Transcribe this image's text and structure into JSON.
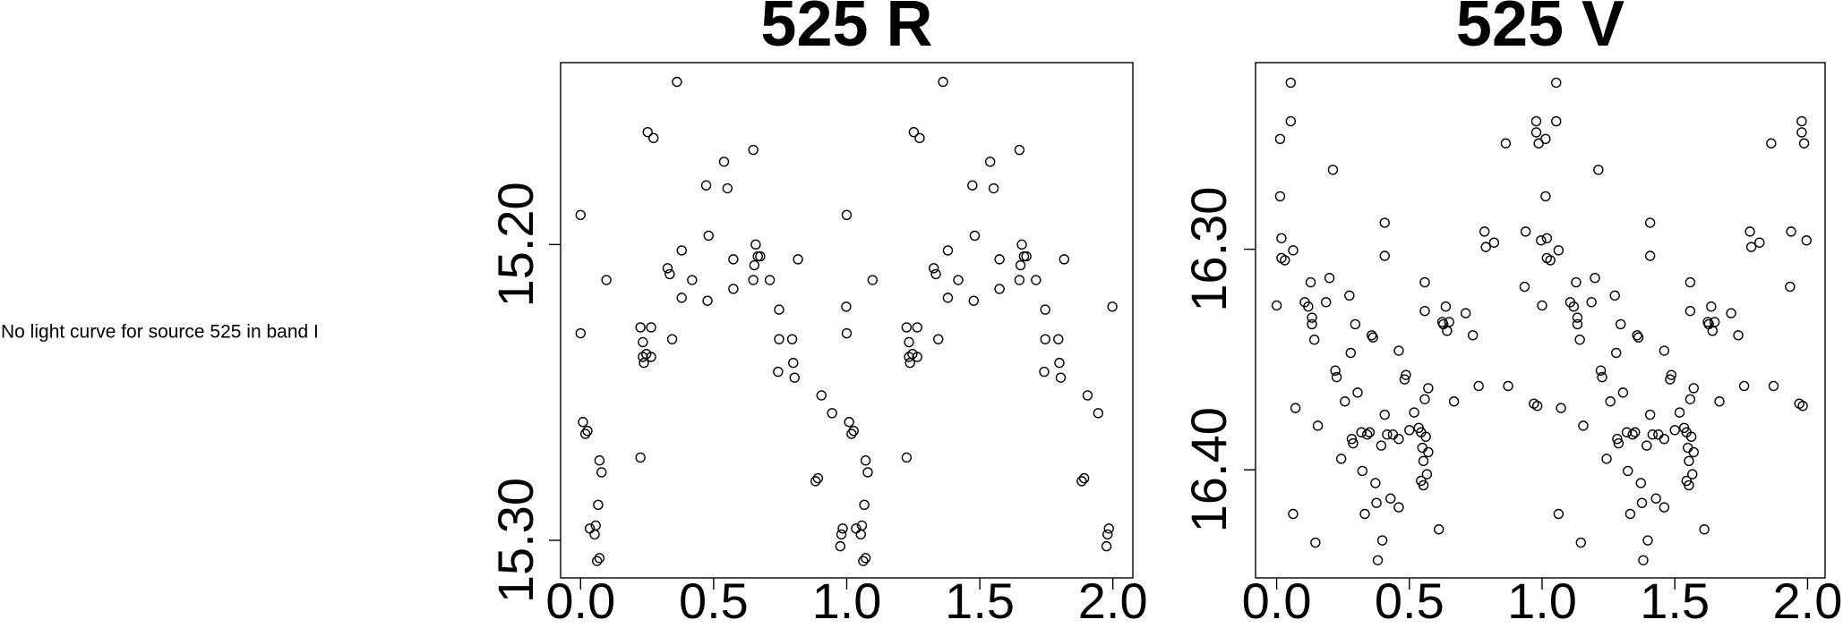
{
  "message": "No light curve for source 525 in band I",
  "chart_data": [
    {
      "type": "scatter",
      "title": "525 R",
      "y_reversed": true,
      "color": "#000000",
      "xlim": [
        -0.075,
        2.075
      ],
      "ylim": [
        15.1385,
        15.3127
      ],
      "xticks": [
        {
          "value": 0,
          "label": "0.0"
        },
        0.5,
        {
          "value": 1,
          "label": "1.0"
        },
        1.5,
        {
          "value": 2,
          "label": "2.0"
        }
      ],
      "yticks": [
        {
          "value": 15.2,
          "label": "15.20"
        },
        {
          "value": 15.3,
          "label": "15.30"
        }
      ],
      "x": [
        0.0,
        0.0,
        0.009,
        0.018,
        0.026,
        0.035,
        0.053,
        0.057,
        0.062,
        0.071,
        0.071,
        0.079,
        0.066,
        0.097,
        0.225,
        0.225,
        0.234,
        0.234,
        0.238,
        0.247,
        0.265,
        0.265,
        0.252,
        0.274,
        0.327,
        0.335,
        0.344,
        0.362,
        0.38,
        0.38,
        0.419,
        0.472,
        0.481,
        0.477,
        0.539,
        0.552,
        0.574,
        0.574,
        0.649,
        0.649,
        0.653,
        0.658,
        0.666,
        0.675,
        0.817,
        0.711,
        0.746,
        0.746,
        0.742,
        0.795,
        0.799,
        0.804,
        0.905,
        0.883,
        0.892,
        0.945,
        0.976,
        0.98,
        0.985,
        0.998,
        1.0,
        1.0,
        1.009,
        1.018,
        1.026,
        1.035,
        1.053,
        1.057,
        1.062,
        1.071,
        1.071,
        1.079,
        1.066,
        1.097,
        1.225,
        1.225,
        1.234,
        1.234,
        1.238,
        1.247,
        1.265,
        1.265,
        1.252,
        1.274,
        1.327,
        1.335,
        1.344,
        1.362,
        1.38,
        1.38,
        1.419,
        1.472,
        1.481,
        1.477,
        1.539,
        1.552,
        1.574,
        1.574,
        1.649,
        1.649,
        1.653,
        1.658,
        1.666,
        1.675,
        1.817,
        1.711,
        1.746,
        1.746,
        1.742,
        1.795,
        1.799,
        1.804,
        1.905,
        1.883,
        1.892,
        1.945,
        1.976,
        1.98,
        1.985,
        1.998
      ],
      "values": [
        15.19,
        15.23,
        15.26,
        15.264,
        15.263,
        15.296,
        15.298,
        15.295,
        15.307,
        15.306,
        15.273,
        15.277,
        15.288,
        15.212,
        15.272,
        15.228,
        15.233,
        15.238,
        15.24,
        15.237,
        15.228,
        15.238,
        15.162,
        15.164,
        15.208,
        15.21,
        15.232,
        15.145,
        15.202,
        15.218,
        15.212,
        15.18,
        15.197,
        15.219,
        15.172,
        15.181,
        15.205,
        15.215,
        15.168,
        15.212,
        15.207,
        15.2,
        15.204,
        15.204,
        15.205,
        15.212,
        15.222,
        15.232,
        15.243,
        15.232,
        15.24,
        15.245,
        15.251,
        15.28,
        15.279,
        15.257,
        15.302,
        15.298,
        15.296,
        15.221,
        15.19,
        15.23,
        15.26,
        15.264,
        15.263,
        15.296,
        15.298,
        15.295,
        15.307,
        15.306,
        15.273,
        15.277,
        15.288,
        15.212,
        15.272,
        15.228,
        15.233,
        15.238,
        15.24,
        15.237,
        15.228,
        15.238,
        15.162,
        15.164,
        15.208,
        15.21,
        15.232,
        15.145,
        15.202,
        15.218,
        15.212,
        15.18,
        15.197,
        15.219,
        15.172,
        15.181,
        15.205,
        15.215,
        15.168,
        15.212,
        15.207,
        15.2,
        15.204,
        15.204,
        15.205,
        15.212,
        15.222,
        15.232,
        15.243,
        15.232,
        15.24,
        15.245,
        15.251,
        15.28,
        15.279,
        15.257,
        15.302,
        15.298,
        15.296,
        15.221
      ]
    },
    {
      "type": "scatter",
      "title": "525 V",
      "y_reversed": true,
      "color": "#000000",
      "xlim": [
        -0.0796,
        2.066
      ],
      "ylim": [
        16.2154,
        16.449
      ],
      "xticks": [
        {
          "value": 0,
          "label": "0.0"
        },
        0.5,
        {
          "value": 1,
          "label": "1.0"
        },
        1.5,
        {
          "value": 2,
          "label": "2.0"
        }
      ],
      "yticks": [
        {
          "value": 16.3,
          "label": "16.30"
        },
        {
          "value": 16.4,
          "label": "16.40"
        }
      ],
      "x": [
        0.0,
        0.013,
        0.013,
        0.018,
        0.018,
        0.031,
        0.053,
        0.053,
        0.062,
        0.062,
        0.071,
        0.106,
        0.119,
        0.128,
        0.133,
        0.133,
        0.142,
        0.146,
        0.155,
        0.186,
        0.199,
        0.212,
        0.221,
        0.226,
        0.243,
        0.257,
        0.274,
        0.279,
        0.283,
        0.288,
        0.296,
        0.305,
        0.319,
        0.323,
        0.332,
        0.341,
        0.35,
        0.358,
        0.363,
        0.372,
        0.376,
        0.381,
        0.394,
        0.398,
        0.407,
        0.407,
        0.407,
        0.416,
        0.429,
        0.438,
        0.46,
        0.46,
        0.46,
        0.482,
        0.487,
        0.5,
        0.518,
        0.535,
        0.544,
        0.544,
        0.549,
        0.553,
        0.553,
        0.558,
        0.558,
        0.558,
        0.562,
        0.566,
        0.571,
        0.571,
        0.611,
        0.624,
        0.628,
        0.637,
        0.642,
        0.65,
        0.668,
        0.712,
        0.739,
        0.761,
        0.783,
        0.788,
        0.819,
        0.863,
        0.872,
        0.938,
        0.934,
        0.969,
        0.978,
        0.978,
        0.982,
        0.987,
        0.996,
        1.0,
        1.013,
        1.013,
        1.018,
        1.018,
        1.031,
        1.053,
        1.053,
        1.062,
        1.062,
        1.071,
        1.106,
        1.119,
        1.128,
        1.133,
        1.133,
        1.142,
        1.146,
        1.155,
        1.186,
        1.199,
        1.212,
        1.221,
        1.226,
        1.243,
        1.257,
        1.274,
        1.279,
        1.283,
        1.288,
        1.296,
        1.305,
        1.319,
        1.323,
        1.332,
        1.341,
        1.35,
        1.358,
        1.363,
        1.372,
        1.376,
        1.381,
        1.394,
        1.398,
        1.407,
        1.407,
        1.407,
        1.416,
        1.429,
        1.438,
        1.46,
        1.46,
        1.46,
        1.482,
        1.487,
        1.5,
        1.518,
        1.535,
        1.544,
        1.544,
        1.549,
        1.553,
        1.553,
        1.558,
        1.558,
        1.558,
        1.562,
        1.566,
        1.571,
        1.571,
        1.611,
        1.624,
        1.628,
        1.637,
        1.642,
        1.65,
        1.668,
        1.712,
        1.739,
        1.761,
        1.783,
        1.788,
        1.819,
        1.863,
        1.872,
        1.938,
        1.934,
        1.969,
        1.978,
        1.978,
        1.982,
        1.987,
        1.996
      ],
      "values": [
        16.3255,
        16.25,
        16.276,
        16.295,
        16.304,
        16.305,
        16.2245,
        16.242,
        16.3005,
        16.42,
        16.372,
        16.324,
        16.326,
        16.315,
        16.331,
        16.334,
        16.341,
        16.433,
        16.38,
        16.324,
        16.313,
        16.264,
        16.355,
        16.358,
        16.395,
        16.369,
        16.321,
        16.347,
        16.386,
        16.388,
        16.334,
        16.365,
        16.383,
        16.4005,
        16.42,
        16.384,
        16.383,
        16.339,
        16.34,
        16.406,
        16.415,
        16.441,
        16.389,
        16.432,
        16.303,
        16.288,
        16.375,
        16.384,
        16.413,
        16.384,
        16.386,
        16.417,
        16.346,
        16.359,
        16.357,
        16.382,
        16.374,
        16.381,
        16.383,
        16.405,
        16.39,
        16.396,
        16.407,
        16.315,
        16.328,
        16.368,
        16.385,
        16.402,
        16.392,
        16.363,
        16.427,
        16.333,
        16.334,
        16.326,
        16.337,
        16.333,
        16.369,
        16.329,
        16.339,
        16.362,
        16.292,
        16.299,
        16.297,
        16.252,
        16.362,
        16.292,
        16.317,
        16.37,
        16.242,
        16.247,
        16.371,
        16.252,
        16.296,
        16.3255,
        16.25,
        16.276,
        16.295,
        16.304,
        16.305,
        16.2245,
        16.242,
        16.3005,
        16.42,
        16.372,
        16.324,
        16.326,
        16.315,
        16.331,
        16.334,
        16.341,
        16.433,
        16.38,
        16.324,
        16.313,
        16.264,
        16.355,
        16.358,
        16.395,
        16.369,
        16.321,
        16.347,
        16.386,
        16.388,
        16.334,
        16.365,
        16.383,
        16.4005,
        16.42,
        16.384,
        16.383,
        16.339,
        16.34,
        16.406,
        16.415,
        16.441,
        16.389,
        16.432,
        16.303,
        16.288,
        16.375,
        16.384,
        16.413,
        16.384,
        16.386,
        16.417,
        16.346,
        16.359,
        16.357,
        16.382,
        16.374,
        16.381,
        16.383,
        16.405,
        16.39,
        16.396,
        16.407,
        16.315,
        16.328,
        16.368,
        16.385,
        16.402,
        16.392,
        16.363,
        16.427,
        16.333,
        16.334,
        16.326,
        16.337,
        16.333,
        16.369,
        16.329,
        16.339,
        16.362,
        16.292,
        16.299,
        16.297,
        16.252,
        16.362,
        16.292,
        16.317,
        16.37,
        16.242,
        16.247,
        16.371,
        16.252,
        16.296
      ]
    }
  ]
}
